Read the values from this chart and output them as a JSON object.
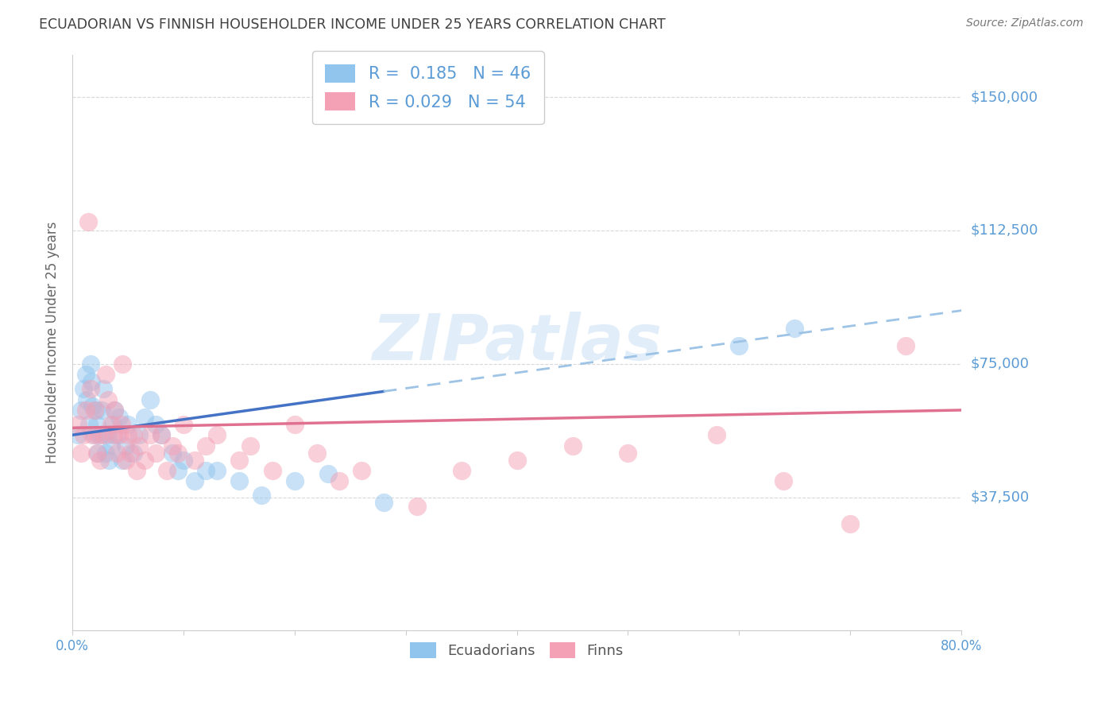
{
  "title": "ECUADORIAN VS FINNISH HOUSEHOLDER INCOME UNDER 25 YEARS CORRELATION CHART",
  "source": "Source: ZipAtlas.com",
  "ylabel": "Householder Income Under 25 years",
  "ytick_labels": [
    "$37,500",
    "$75,000",
    "$112,500",
    "$150,000"
  ],
  "ytick_values": [
    37500,
    75000,
    112500,
    150000
  ],
  "ymin": 0,
  "ymax": 162000,
  "xmin": 0.0,
  "xmax": 0.8,
  "watermark": "ZIPatlas",
  "blue_color": "#92C5EE",
  "pink_color": "#F4A0B5",
  "trendline_blue_solid": "#4472C4",
  "trendline_blue_dash": "#9DC3E6",
  "trendline_pink": "#E07090",
  "grid_color": "#D0D0D0",
  "title_color": "#404040",
  "label_color": "#5B9BD5",
  "ecu_x": [
    0.005,
    0.008,
    0.01,
    0.012,
    0.013,
    0.015,
    0.016,
    0.017,
    0.018,
    0.02,
    0.021,
    0.022,
    0.023,
    0.025,
    0.026,
    0.028,
    0.03,
    0.031,
    0.033,
    0.035,
    0.036,
    0.038,
    0.04,
    0.042,
    0.045,
    0.048,
    0.05,
    0.055,
    0.06,
    0.065,
    0.07,
    0.075,
    0.08,
    0.09,
    0.095,
    0.1,
    0.11,
    0.12,
    0.13,
    0.15,
    0.17,
    0.2,
    0.23,
    0.28,
    0.6,
    0.65
  ],
  "ecu_y": [
    55000,
    62000,
    68000,
    72000,
    65000,
    58000,
    75000,
    70000,
    63000,
    55000,
    62000,
    58000,
    50000,
    55000,
    62000,
    68000,
    50000,
    55000,
    48000,
    52000,
    58000,
    62000,
    55000,
    60000,
    48000,
    52000,
    58000,
    50000,
    55000,
    60000,
    65000,
    58000,
    55000,
    50000,
    45000,
    48000,
    42000,
    45000,
    45000,
    42000,
    38000,
    42000,
    44000,
    36000,
    80000,
    85000
  ],
  "fin_x": [
    0.005,
    0.008,
    0.01,
    0.012,
    0.014,
    0.016,
    0.018,
    0.02,
    0.022,
    0.023,
    0.025,
    0.028,
    0.03,
    0.032,
    0.035,
    0.037,
    0.038,
    0.04,
    0.042,
    0.044,
    0.045,
    0.048,
    0.05,
    0.052,
    0.055,
    0.058,
    0.06,
    0.065,
    0.07,
    0.075,
    0.08,
    0.085,
    0.09,
    0.095,
    0.1,
    0.11,
    0.12,
    0.13,
    0.15,
    0.16,
    0.18,
    0.2,
    0.22,
    0.24,
    0.26,
    0.31,
    0.35,
    0.4,
    0.45,
    0.5,
    0.58,
    0.64,
    0.7,
    0.75
  ],
  "fin_y": [
    58000,
    50000,
    55000,
    62000,
    115000,
    68000,
    55000,
    62000,
    50000,
    55000,
    48000,
    55000,
    72000,
    65000,
    58000,
    55000,
    62000,
    50000,
    55000,
    58000,
    75000,
    48000,
    55000,
    50000,
    55000,
    45000,
    52000,
    48000,
    55000,
    50000,
    55000,
    45000,
    52000,
    50000,
    58000,
    48000,
    52000,
    55000,
    48000,
    52000,
    45000,
    58000,
    50000,
    42000,
    45000,
    35000,
    45000,
    48000,
    52000,
    50000,
    55000,
    42000,
    30000,
    80000
  ]
}
